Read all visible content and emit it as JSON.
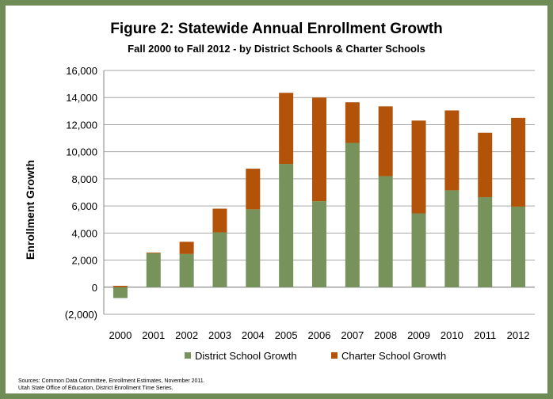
{
  "chart_data": {
    "type": "bar",
    "stacked": true,
    "title": "Figure 2: Statewide Annual Enrollment Growth",
    "subtitle": "Fall 2000 to Fall 2012 - by District Schools & Charter Schools",
    "xlabel": "",
    "ylabel": "Enrollment Growth",
    "ylim": [
      -2000,
      16000
    ],
    "yticks": [
      -2000,
      0,
      2000,
      4000,
      6000,
      8000,
      10000,
      12000,
      14000,
      16000
    ],
    "ytick_labels": [
      "(2,000)",
      "0",
      "2,000",
      "4,000",
      "6,000",
      "8,000",
      "10,000",
      "12,000",
      "14,000",
      "16,000"
    ],
    "grid": true,
    "legend": "bottom",
    "categories": [
      "2000",
      "2001",
      "2002",
      "2003",
      "2004",
      "2005",
      "2006",
      "2007",
      "2008",
      "2009",
      "2010",
      "2011",
      "2012"
    ],
    "series": [
      {
        "name": "District School Growth",
        "color": "#77935b",
        "values": [
          -800,
          2500,
          2450,
          4050,
          5750,
          9100,
          6350,
          10650,
          8200,
          5450,
          7150,
          6650,
          5950
        ]
      },
      {
        "name": "Charter School Growth",
        "color": "#b35309",
        "values": [
          100,
          50,
          900,
          1750,
          3000,
          5250,
          7650,
          3000,
          5150,
          6850,
          5900,
          4750,
          6550
        ]
      }
    ]
  },
  "sources": {
    "line1": "Sources: Common Data Committee, Enrollment Estimates, November 2011.",
    "line2": "Utah State Office of Education, District Enrollment Time Series."
  }
}
